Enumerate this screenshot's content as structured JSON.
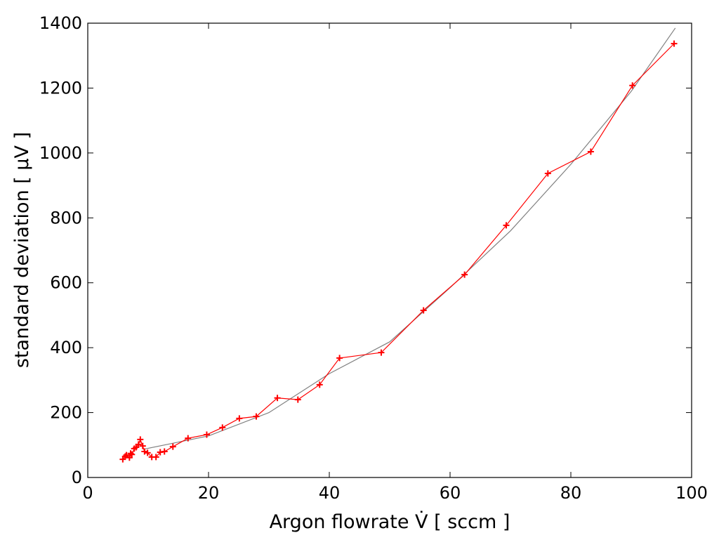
{
  "chart_data": {
    "type": "line",
    "x_label": "Argon flowrate V̇  [ sccm ]",
    "y_label": "standard deviation [ μV ]",
    "xlim": [
      0,
      100
    ],
    "ylim": [
      0,
      1400
    ],
    "xticks": [
      0,
      20,
      40,
      60,
      80,
      100
    ],
    "yticks": [
      0,
      200,
      400,
      600,
      800,
      1000,
      1200,
      1400
    ],
    "grid": false,
    "series": [
      {
        "color": "#ff0000",
        "marker": "+",
        "x": [
          5.8,
          6.2,
          6.4,
          6.9,
          7.1,
          7.3,
          7.7,
          8.0,
          8.4,
          8.7,
          9.1,
          9.4,
          9.9,
          10.6,
          11.3,
          12.0,
          12.7,
          14.1,
          16.6,
          19.7,
          22.3,
          25.1,
          27.9,
          31.4,
          34.8,
          38.4,
          41.7,
          48.6,
          55.6,
          62.4,
          69.3,
          76.2,
          83.3,
          90.2,
          97.1
        ],
        "values": [
          56,
          65,
          69,
          61,
          74,
          71,
          89,
          93,
          102,
          117,
          97,
          80,
          76,
          63,
          63,
          78,
          80,
          95,
          121,
          132,
          154,
          182,
          188,
          245,
          240,
          286,
          368,
          385,
          515,
          625,
          777,
          937,
          1004,
          1208,
          1337
        ]
      },
      {
        "color": "#808080",
        "x": [
          9.5,
          20,
          30,
          40,
          50,
          60,
          70,
          80,
          90,
          97.3
        ],
        "values": [
          88,
          128,
          200,
          320,
          418,
          585,
          760,
          965,
          1190,
          1385
        ]
      }
    ]
  }
}
